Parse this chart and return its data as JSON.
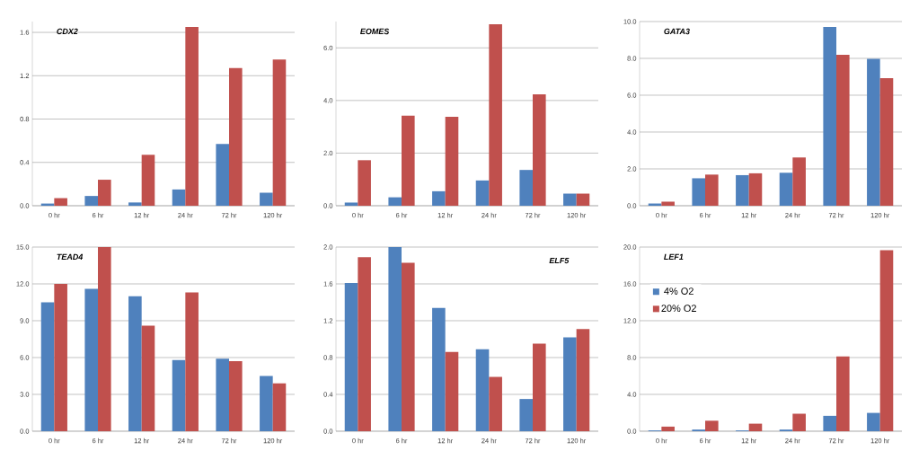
{
  "chart_data": [
    {
      "type": "bar",
      "title": "CDX2",
      "categories": [
        "0 hr",
        "6 hr",
        "12 hr",
        "24 hr",
        "72 hr",
        "120 hr"
      ],
      "ylim": [
        0,
        1.7
      ],
      "yticks": [
        {
          "value": 0,
          "label": "0.0"
        },
        {
          "value": 0.4,
          "label": "0.4"
        },
        {
          "value": 0.8,
          "label": "0.8"
        },
        {
          "value": 1.2,
          "label": "1.2"
        },
        {
          "value": 1.6,
          "label": "1.6"
        }
      ],
      "grid": "y",
      "series": [
        {
          "color": "#4f81bd",
          "values": [
            0.02,
            0.09,
            0.03,
            0.15,
            0.57,
            0.12
          ]
        },
        {
          "color": "#c0504d",
          "values": [
            0.07,
            0.24,
            0.47,
            1.65,
            1.27,
            1.35
          ]
        }
      ]
    },
    {
      "type": "bar",
      "title": "EOMES",
      "categories": [
        "0 hr",
        "6 hr",
        "12 hr",
        "24 hr",
        "72 hr",
        "120 hr"
      ],
      "ylim": [
        0,
        7.0
      ],
      "yticks": [
        {
          "value": 0,
          "label": "0.0"
        },
        {
          "value": 2,
          "label": "2.0"
        },
        {
          "value": 4,
          "label": "4.0"
        },
        {
          "value": 6,
          "label": "6.0"
        }
      ],
      "grid": "y",
      "series": [
        {
          "color": "#4f81bd",
          "values": [
            0.12,
            0.32,
            0.55,
            0.96,
            1.36,
            0.46
          ]
        },
        {
          "color": "#c0504d",
          "values": [
            1.73,
            3.42,
            3.38,
            6.9,
            4.23,
            0.46
          ]
        }
      ]
    },
    {
      "type": "bar",
      "title": "GATA3",
      "categories": [
        "0 hr",
        "6 hr",
        "12 hr",
        "24 hr",
        "72 hr",
        "120 hr"
      ],
      "ylim": [
        0,
        10
      ],
      "yticks": [
        {
          "value": 0,
          "label": "0.0"
        },
        {
          "value": 2,
          "label": "2.0"
        },
        {
          "value": 4,
          "label": "4.0"
        },
        {
          "value": 6,
          "label": "6.0"
        },
        {
          "value": 8,
          "label": "8.0"
        },
        {
          "value": 10,
          "label": "10.0"
        }
      ],
      "grid": "y",
      "series": [
        {
          "color": "#4f81bd",
          "values": [
            0.12,
            1.49,
            1.66,
            1.79,
            9.71,
            7.97
          ]
        },
        {
          "color": "#c0504d",
          "values": [
            0.22,
            1.69,
            1.76,
            2.62,
            8.19,
            6.93
          ]
        }
      ]
    },
    {
      "type": "bar",
      "title": "TEAD4",
      "categories": [
        "0 hr",
        "6 hr",
        "12 hr",
        "24 hr",
        "72 hr",
        "120 hr"
      ],
      "ylim": [
        0,
        15
      ],
      "yticks": [
        {
          "value": 0,
          "label": "0.0"
        },
        {
          "value": 3,
          "label": "3.0"
        },
        {
          "value": 6,
          "label": "6.0"
        },
        {
          "value": 9,
          "label": "9.0"
        },
        {
          "value": 12,
          "label": "12.0"
        },
        {
          "value": 15,
          "label": "15.0"
        }
      ],
      "grid": "y",
      "series": [
        {
          "color": "#4f81bd",
          "values": [
            10.5,
            11.6,
            11.0,
            5.8,
            5.9,
            4.5
          ]
        },
        {
          "color": "#c0504d",
          "values": [
            12.0,
            15.0,
            8.6,
            11.3,
            5.7,
            3.9
          ]
        }
      ]
    },
    {
      "type": "bar",
      "title": "ELF5",
      "categories": [
        "0 hr",
        "6 hr",
        "12 hr",
        "24 hr",
        "72 hr",
        "120 hr"
      ],
      "ylim": [
        0,
        2.0
      ],
      "yticks": [
        {
          "value": 0,
          "label": "0.0"
        },
        {
          "value": 0.4,
          "label": "0.4"
        },
        {
          "value": 0.8,
          "label": "0.8"
        },
        {
          "value": 1.2,
          "label": "1.2"
        },
        {
          "value": 1.6,
          "label": "1.6"
        },
        {
          "value": 2.0,
          "label": "2.0"
        }
      ],
      "grid": "y",
      "series": [
        {
          "color": "#4f81bd",
          "values": [
            1.61,
            2.0,
            1.34,
            0.89,
            0.35,
            1.02
          ]
        },
        {
          "color": "#c0504d",
          "values": [
            1.89,
            1.83,
            0.86,
            0.59,
            0.95,
            1.11
          ]
        }
      ]
    },
    {
      "type": "bar",
      "title": "LEF1",
      "categories": [
        "0 hr",
        "6 hr",
        "12 hr",
        "24 hr",
        "72 hr",
        "120 hr"
      ],
      "ylim": [
        0,
        20
      ],
      "yticks": [
        {
          "value": 0,
          "label": "0.0"
        },
        {
          "value": 4,
          "label": "4.0"
        },
        {
          "value": 8,
          "label": "8.0"
        },
        {
          "value": 12,
          "label": "12.0"
        },
        {
          "value": 16,
          "label": "16.0"
        },
        {
          "value": 20,
          "label": "20.0"
        }
      ],
      "grid": "y",
      "legend": "top left",
      "series": [
        {
          "name": "4% O2",
          "color": "#4f81bd",
          "values": [
            0.09,
            0.18,
            0.09,
            0.18,
            1.67,
            1.99
          ]
        },
        {
          "name": "20% O2",
          "color": "#c0504d",
          "values": [
            0.5,
            1.14,
            0.82,
            1.9,
            8.13,
            19.65
          ]
        }
      ]
    }
  ]
}
